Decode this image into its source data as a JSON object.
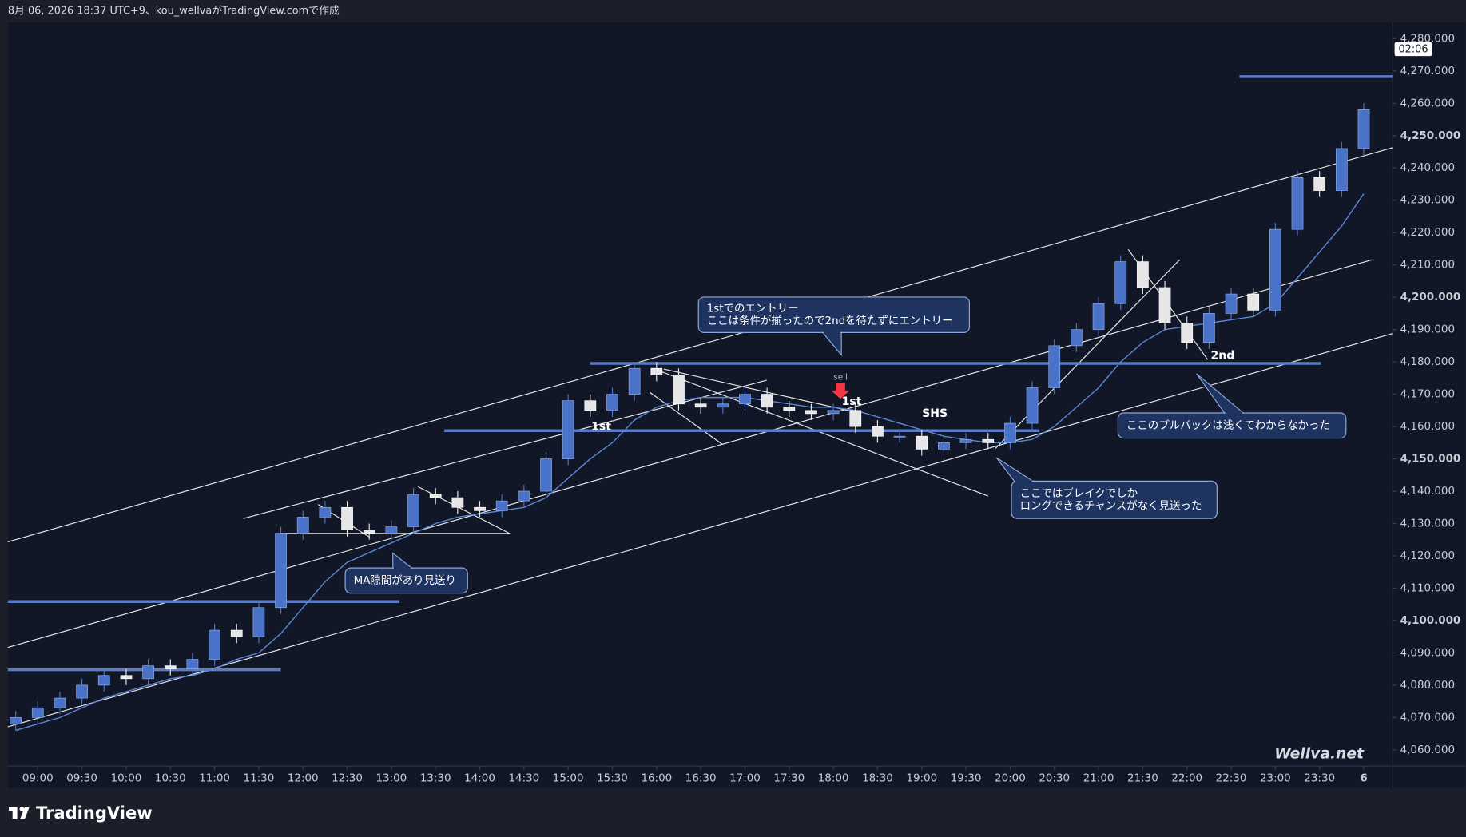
{
  "header": "8月 06, 2026 18:37 UTC+9、kou_wellvaがTradingView.comで作成",
  "brand": "TradingView",
  "watermark": "Wellva.net",
  "countdown": "02:06",
  "chart_data": {
    "type": "candlestick",
    "x": [
      "08:45",
      "09:00",
      "09:15",
      "09:30",
      "09:45",
      "10:00",
      "10:15",
      "10:30",
      "10:45",
      "11:00",
      "11:15",
      "11:30",
      "11:45",
      "12:00",
      "12:15",
      "12:30",
      "12:45",
      "13:00",
      "13:15",
      "13:30",
      "13:45",
      "14:00",
      "14:15",
      "14:30",
      "14:45",
      "15:00",
      "15:15",
      "15:30",
      "15:45",
      "16:00",
      "16:15",
      "16:30",
      "16:45",
      "17:00",
      "17:15",
      "17:30",
      "17:45",
      "18:00",
      "18:15",
      "18:30",
      "18:45",
      "19:00",
      "19:15",
      "19:30",
      "19:45",
      "20:00",
      "20:15",
      "20:30",
      "20:45",
      "21:00",
      "21:15",
      "21:30",
      "21:45",
      "22:00",
      "22:15",
      "22:30",
      "22:45",
      "23:00",
      "23:15",
      "23:30",
      "23:45",
      "00:00"
    ],
    "open": [
      4068,
      4070,
      4073,
      4076,
      4080,
      4083,
      4082,
      4086,
      4085,
      4088,
      4097,
      4095,
      4104,
      4127,
      4132,
      4135,
      4128,
      4127,
      4129,
      4139,
      4138,
      4135,
      4134,
      4137,
      4140,
      4150,
      4168,
      4165,
      4170,
      4178,
      4176,
      4167,
      4166,
      4167,
      4170,
      4166,
      4165,
      4164,
      4165,
      4160,
      4157,
      4157,
      4153,
      4155,
      4156,
      4155,
      4161,
      4172,
      4185,
      4190,
      4198,
      4211,
      4203,
      4192,
      4186,
      4195,
      4201,
      4196,
      4221,
      4237,
      4233,
      4246
    ],
    "high": [
      4072,
      4075,
      4078,
      4082,
      4085,
      4085,
      4088,
      4088,
      4090,
      4099,
      4099,
      4106,
      4129,
      4134,
      4137,
      4137,
      4130,
      4131,
      4141,
      4141,
      4140,
      4137,
      4139,
      4142,
      4152,
      4170,
      4170,
      4172,
      4180,
      4180,
      4178,
      4169,
      4169,
      4172,
      4172,
      4168,
      4167,
      4167,
      4167,
      4162,
      4159,
      4159,
      4157,
      4158,
      4158,
      4163,
      4174,
      4187,
      4192,
      4200,
      4213,
      4213,
      4205,
      4194,
      4197,
      4203,
      4203,
      4223,
      4239,
      4239,
      4248,
      4260
    ],
    "low": [
      4066,
      4068,
      4071,
      4074,
      4078,
      4080,
      4080,
      4083,
      4083,
      4086,
      4093,
      4093,
      4102,
      4125,
      4130,
      4126,
      4125,
      4125,
      4127,
      4136,
      4133,
      4132,
      4132,
      4135,
      4138,
      4148,
      4163,
      4163,
      4168,
      4174,
      4165,
      4164,
      4164,
      4165,
      4164,
      4163,
      4162,
      4162,
      4158,
      4155,
      4155,
      4151,
      4151,
      4153,
      4153,
      4153,
      4159,
      4170,
      4183,
      4188,
      4196,
      4201,
      4190,
      4184,
      4184,
      4193,
      4194,
      4194,
      4219,
      4231,
      4231,
      4244
    ],
    "close": [
      4070,
      4073,
      4076,
      4080,
      4083,
      4082,
      4086,
      4085,
      4088,
      4097,
      4095,
      4104,
      4127,
      4132,
      4135,
      4128,
      4127,
      4129,
      4139,
      4138,
      4135,
      4134,
      4137,
      4140,
      4150,
      4168,
      4165,
      4170,
      4178,
      4176,
      4167,
      4166,
      4167,
      4170,
      4166,
      4165,
      4164,
      4165,
      4160,
      4157,
      4157,
      4153,
      4155,
      4156,
      4155,
      4161,
      4172,
      4185,
      4190,
      4198,
      4211,
      4203,
      4192,
      4186,
      4195,
      4201,
      4196,
      4221,
      4237,
      4233,
      4246,
      4258
    ],
    "moving_average": [
      4066,
      4068,
      4070,
      4073,
      4076,
      4078,
      4080,
      4082,
      4083,
      4085,
      4088,
      4090,
      4096,
      4104,
      4112,
      4118,
      4121,
      4124,
      4127,
      4130,
      4132,
      4133,
      4134,
      4135,
      4138,
      4144,
      4150,
      4155,
      4162,
      4166,
      4168,
      4169,
      4169,
      4169,
      4168,
      4167,
      4166,
      4166,
      4165,
      4163,
      4161,
      4159,
      4157,
      4156,
      4155,
      4155,
      4156,
      4160,
      4166,
      4172,
      4180,
      4186,
      4190,
      4191,
      4192,
      4193,
      4194,
      4198,
      4206,
      4214,
      4222,
      4232
    ],
    "up_color": "#4a72c8",
    "down_color": "#e6e6e6",
    "ma_color": "#5b86d6",
    "ylim": [
      4055,
      4285
    ],
    "yticks": [
      {
        "value": 4060,
        "label": "4,060.000"
      },
      {
        "value": 4070,
        "label": "4,070.000"
      },
      {
        "value": 4080,
        "label": "4,080.000"
      },
      {
        "value": 4090,
        "label": "4,090.000"
      },
      {
        "value": 4100,
        "label": "4,100.000"
      },
      {
        "value": 4110,
        "label": "4,110.000"
      },
      {
        "value": 4120,
        "label": "4,120.000"
      },
      {
        "value": 4130,
        "label": "4,130.000"
      },
      {
        "value": 4140,
        "label": "4,140.000"
      },
      {
        "value": 4150,
        "label": "4,150.000"
      },
      {
        "value": 4160,
        "label": "4,160.000"
      },
      {
        "value": 4170,
        "label": "4,170.000"
      },
      {
        "value": 4180,
        "label": "4,180.000"
      },
      {
        "value": 4190,
        "label": "4,190.000"
      },
      {
        "value": 4200,
        "label": "4,200.000"
      },
      {
        "value": 4210,
        "label": "4,210.000"
      },
      {
        "value": 4220,
        "label": "4,220.000"
      },
      {
        "value": 4230,
        "label": "4,230.000"
      },
      {
        "value": 4240,
        "label": "4,240.000"
      },
      {
        "value": 4250,
        "label": "4,250.000"
      },
      {
        "value": 4260,
        "label": "4,260.000"
      },
      {
        "value": 4270,
        "label": "4,270.000"
      },
      {
        "value": 4280,
        "label": "4,280.000"
      }
    ],
    "xticks": [
      "09:00",
      "09:30",
      "10:00",
      "10:30",
      "11:00",
      "11:30",
      "12:00",
      "12:30",
      "13:00",
      "13:30",
      "14:00",
      "14:30",
      "15:00",
      "15:30",
      "16:00",
      "16:30",
      "17:00",
      "17:30",
      "18:00",
      "18:30",
      "19:00",
      "19:30",
      "20:00",
      "20:30",
      "21:00",
      "21:30",
      "22:00",
      "22:30",
      "23:00",
      "23:30",
      {
        "value": "00:00",
        "label": "6"
      }
    ],
    "grid": false,
    "annotations": [
      {
        "lines": [
          "1stでのエントリー",
          "ここは条件が揃ったので2ndを待たずにエントリー"
        ]
      },
      {
        "lines": [
          "MA隙間があり見送り"
        ]
      },
      {
        "lines": [
          "ここではブレイクでしか",
          "ロングできるチャンスがなく見送った"
        ]
      },
      {
        "lines": [
          "ここのプルバックは浅くてわからなかった"
        ]
      }
    ],
    "labels": [
      "1st",
      "sell",
      "1st",
      "SHS",
      "2nd"
    ]
  }
}
